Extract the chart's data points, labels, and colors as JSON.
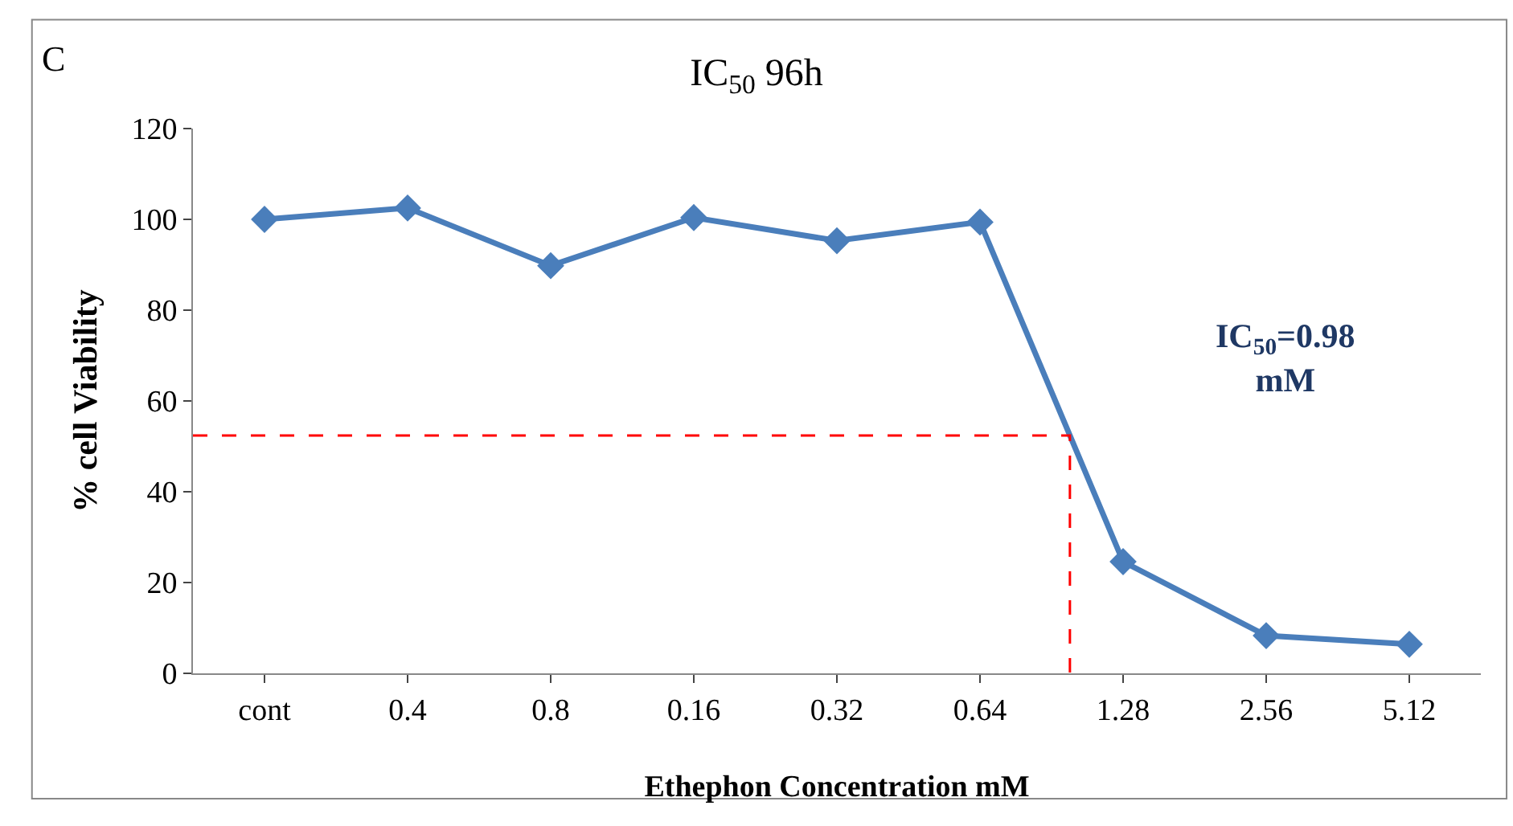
{
  "chart_data": {
    "type": "line",
    "title": "IC$_{50}$ 96h",
    "xlabel": "Ethephon Concentration mM",
    "ylabel": "% cell Viability",
    "categories": [
      "cont",
      "0.4",
      "0.8",
      "0.16",
      "0.32",
      "0.64",
      "1.28",
      "2.56",
      "5.12"
    ],
    "series": [
      {
        "color": "#4a7ebb",
        "values": [
          100,
          102.5,
          89.8,
          100.4,
          95.3,
          99.4,
          24.6,
          8.3,
          6.4
        ]
      }
    ],
    "ylim": [
      0,
      120
    ],
    "yticks": [
      0,
      20,
      40,
      60,
      80,
      100,
      120
    ],
    "marker": "diamond",
    "line_style": "solid",
    "ref_lines": [
      {
        "axis": "y",
        "value": 52.4,
        "color": "#ff0000",
        "line_style": "dashed"
      }
    ],
    "annotations": [
      "C",
      "IC$_{50}$=0.98 mM"
    ]
  }
}
